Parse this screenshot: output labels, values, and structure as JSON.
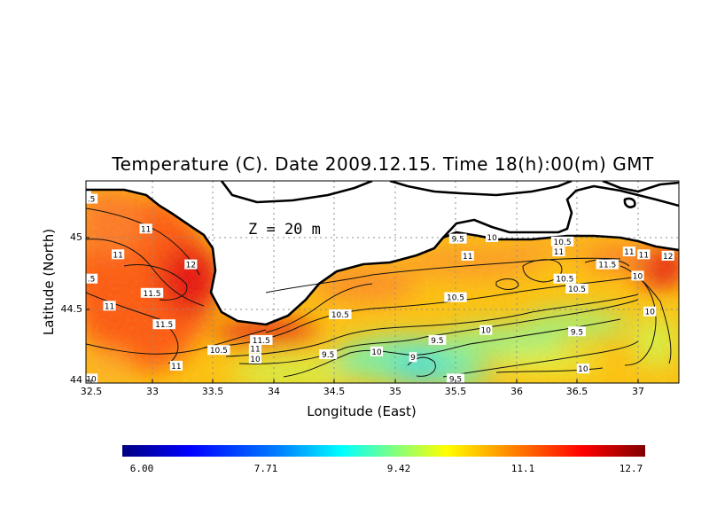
{
  "map": {
    "title": "Temperature (C). Date 2009.12.15. Time 18(h):00(m) GMT",
    "depth_label": "Z = 20 m",
    "xlabel": "Longitude (East)",
    "ylabel": "Latitude (North)",
    "x_range": [
      32.5,
      37.3
    ],
    "y_range": [
      44.0,
      45.35
    ],
    "x_ticks": [
      "32.5",
      "33",
      "33.5",
      "34",
      "34.5",
      "35",
      "35.5",
      "36",
      "36.5",
      "37"
    ],
    "y_ticks": [
      "44",
      "44.5",
      "45"
    ],
    "grid": true,
    "land_color": "#ffffff",
    "coastline_color": "#000000"
  },
  "colorbar": {
    "min": 6.0,
    "max": 12.7,
    "tick_labels": [
      "6.00",
      "7.71",
      "9.42",
      "11.1",
      "12.7"
    ],
    "colors": [
      "#000080",
      "#0000ff",
      "#0080ff",
      "#00ffff",
      "#80ff80",
      "#ffff00",
      "#ff8000",
      "#ff0000",
      "#800000"
    ]
  },
  "contour_labels": [
    {
      "text": ".5",
      "lon": 32.5,
      "lat": 45.27
    },
    {
      "text": "11",
      "lon": 32.95,
      "lat": 45.06
    },
    {
      "text": "11",
      "lon": 32.72,
      "lat": 44.88
    },
    {
      "text": ".5",
      "lon": 32.5,
      "lat": 44.71
    },
    {
      "text": "12",
      "lon": 33.32,
      "lat": 44.81
    },
    {
      "text": "11.5",
      "lon": 33.0,
      "lat": 44.61
    },
    {
      "text": "11",
      "lon": 32.65,
      "lat": 44.52
    },
    {
      "text": "11.5",
      "lon": 33.1,
      "lat": 44.39
    },
    {
      "text": "11",
      "lon": 33.2,
      "lat": 44.1
    },
    {
      "text": "10.5",
      "lon": 33.55,
      "lat": 44.21
    },
    {
      "text": "11.5",
      "lon": 33.9,
      "lat": 44.28
    },
    {
      "text": "11",
      "lon": 33.85,
      "lat": 44.22
    },
    {
      "text": "10",
      "lon": 33.85,
      "lat": 44.15
    },
    {
      "text": "10.5",
      "lon": 34.55,
      "lat": 44.46
    },
    {
      "text": "9.5",
      "lon": 34.45,
      "lat": 44.18
    },
    {
      "text": "10",
      "lon": 34.85,
      "lat": 44.2
    },
    {
      "text": "9",
      "lon": 35.15,
      "lat": 44.16
    },
    {
      "text": "9.5",
      "lon": 35.5,
      "lat": 44.01
    },
    {
      "text": "9.5",
      "lon": 35.52,
      "lat": 44.99
    },
    {
      "text": "10",
      "lon": 35.8,
      "lat": 45.0
    },
    {
      "text": "11",
      "lon": 35.6,
      "lat": 44.87
    },
    {
      "text": "10.5",
      "lon": 35.5,
      "lat": 44.58
    },
    {
      "text": "9.5",
      "lon": 35.35,
      "lat": 44.28
    },
    {
      "text": "10",
      "lon": 35.75,
      "lat": 44.35
    },
    {
      "text": "9.5",
      "lon": 36.5,
      "lat": 44.34
    },
    {
      "text": "10.5",
      "lon": 36.38,
      "lat": 44.97
    },
    {
      "text": "11",
      "lon": 36.35,
      "lat": 44.9
    },
    {
      "text": "11.5",
      "lon": 36.75,
      "lat": 44.81
    },
    {
      "text": "10.5",
      "lon": 36.4,
      "lat": 44.71
    },
    {
      "text": "10.5",
      "lon": 36.5,
      "lat": 44.64
    },
    {
      "text": "11",
      "lon": 36.93,
      "lat": 44.9
    },
    {
      "text": "11",
      "lon": 37.05,
      "lat": 44.88
    },
    {
      "text": "12",
      "lon": 37.25,
      "lat": 44.87
    },
    {
      "text": "10",
      "lon": 37.0,
      "lat": 44.73
    },
    {
      "text": "10",
      "lon": 37.1,
      "lat": 44.48
    },
    {
      "text": "10",
      "lon": 36.55,
      "lat": 44.08
    },
    {
      "text": "10",
      "lon": 32.5,
      "lat": 44.01
    }
  ]
}
